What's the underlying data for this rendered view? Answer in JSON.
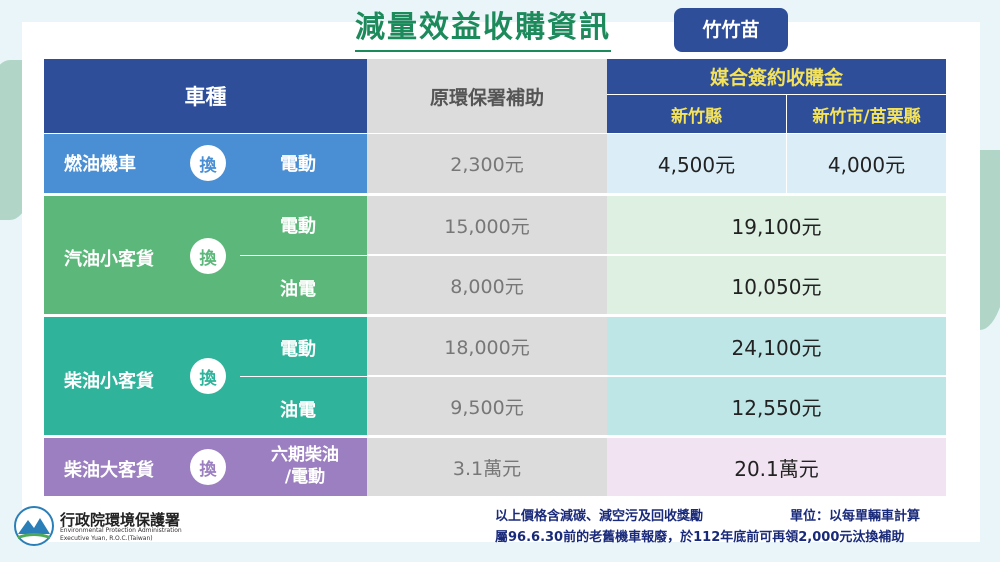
{
  "title": "減量效益收購資訊",
  "region_badge": "竹竹苗",
  "table": {
    "header": {
      "vehicle_type": "車種",
      "epa_subsidy": "原環保署補助",
      "matched_purchase": "媒合簽約收購金",
      "hsinchu_county": "新竹縣",
      "hsinchu_city_miaoli": "新竹市/苗栗縣"
    },
    "swap_label": "換",
    "rows": [
      {
        "vehicle": "燃油機車",
        "options": [
          {
            "target": "電動",
            "subsidy": "2,300元",
            "hsinchu_county": "4,500元",
            "hsinchu_city_miaoli": "4,000元"
          }
        ]
      },
      {
        "vehicle": "汽油小客貨",
        "options": [
          {
            "target": "電動",
            "subsidy": "15,000元",
            "purchase": "19,100元"
          },
          {
            "target": "油電",
            "subsidy": "8,000元",
            "purchase": "10,050元"
          }
        ]
      },
      {
        "vehicle": "柴油小客貨",
        "options": [
          {
            "target": "電動",
            "subsidy": "18,000元",
            "purchase": "24,100元"
          },
          {
            "target": "油電",
            "subsidy": "9,500元",
            "purchase": "12,550元"
          }
        ]
      },
      {
        "vehicle": "柴油大客貨",
        "options": [
          {
            "target_line1": "六期柴油",
            "target_line2": "/電動",
            "subsidy": "3.1萬元",
            "purchase": "20.1萬元"
          }
        ]
      }
    ]
  },
  "notes": {
    "line1": "以上價格含減碳、減空污及回收獎勵",
    "unit": "單位：以每單輛車計算",
    "line2": "屬96.6.30前的老舊機車報廢，於112年底前可再領2,000元汰換補助"
  },
  "logo": {
    "name_zh": "行政院環境保護署",
    "name_en1": "Environmental Protection Administration",
    "name_en2": "Executive Yuan, R.O.C.(Taiwan)"
  },
  "colors": {
    "header_blue": "#2f4e9a",
    "motorcycle_blue": "#4a8fd4",
    "gasoline_green": "#5cb87a",
    "diesel_teal": "#2fb39a",
    "heavy_purple": "#9b7fc0"
  }
}
